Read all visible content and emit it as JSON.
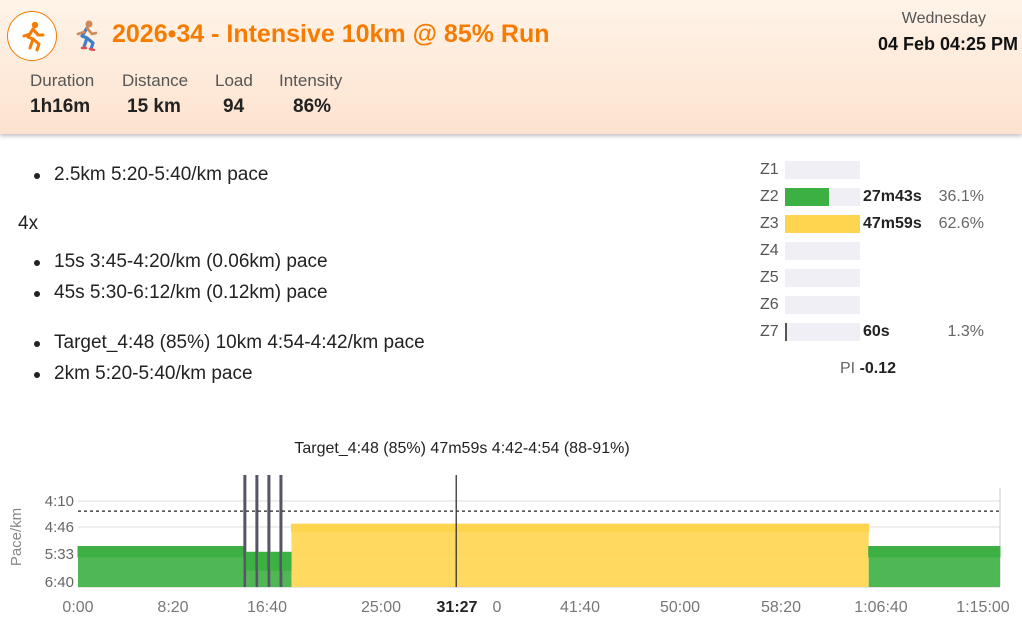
{
  "header": {
    "title": "2026•34 - Intensive 10km @ 85% Run",
    "day": "Wednesday",
    "datetime": "04 Feb 04:25 PM",
    "stats": [
      {
        "label": "Duration",
        "value": "1h16m"
      },
      {
        "label": "Distance",
        "value": "15 km"
      },
      {
        "label": "Load",
        "value": "94"
      },
      {
        "label": "Intensity",
        "value": "86%"
      }
    ]
  },
  "steps": {
    "warmup": "2.5km 5:20-5:40/km pace",
    "repeat_label": "4x",
    "repeat_items": [
      "15s 3:45-4:20/km (0.06km) pace",
      "45s 5:30-6:12/km (0.12km) pace"
    ],
    "main": "Target_4:48 (85%) 10km 4:54-4:42/km pace",
    "cooldown": "2km 5:20-5:40/km pace"
  },
  "zones": [
    {
      "label": "Z1",
      "time": "",
      "percent": "",
      "fraction": 0,
      "color": "#d9d9e6"
    },
    {
      "label": "Z2",
      "time": "27m43s",
      "percent": "36.1%",
      "fraction": 0.59,
      "color": "#3cb043"
    },
    {
      "label": "Z3",
      "time": "47m59s",
      "percent": "62.6%",
      "fraction": 1.0,
      "color": "#ffd54f"
    },
    {
      "label": "Z4",
      "time": "",
      "percent": "",
      "fraction": 0,
      "color": "#d9d9e6"
    },
    {
      "label": "Z5",
      "time": "",
      "percent": "",
      "fraction": 0,
      "color": "#d9d9e6"
    },
    {
      "label": "Z6",
      "time": "",
      "percent": "",
      "fraction": 0,
      "color": "#d9d9e6"
    },
    {
      "label": "Z7",
      "time": "60s",
      "percent": "1.3%",
      "fraction": 0.02,
      "color": "#555555"
    }
  ],
  "pi": {
    "label": "PI",
    "value": "-0.12"
  },
  "chart_data": {
    "type": "area",
    "title": "Target_4:48 (85%) 47m59s 4:42-4:54 (88-91%)",
    "ylabel": "Pace/km",
    "x_ticks": [
      "0:00",
      "8:20",
      "16:40",
      "25:00",
      "31:27",
      "0",
      "41:40",
      "50:00",
      "58:20",
      "1:06:40",
      "1:15:00"
    ],
    "y_ticks": [
      "4:10",
      "4:46",
      "5:33",
      "6:40"
    ],
    "x_range_sec": [
      0,
      4600
    ],
    "threshold_pace": "4:24",
    "cursor": "31:27",
    "segments": [
      {
        "label": "2.5km warmup",
        "start_sec": 0,
        "end_sec": 825,
        "pace_low": "5:20",
        "pace_high": "5:40",
        "zone": "Z2"
      },
      {
        "label": "15s",
        "start_sec": 825,
        "end_sec": 840,
        "pace_low": "3:45",
        "pace_high": "4:20",
        "zone": "Z7"
      },
      {
        "label": "45s",
        "start_sec": 840,
        "end_sec": 885,
        "pace_low": "5:30",
        "pace_high": "6:12",
        "zone": "Z2"
      },
      {
        "label": "15s",
        "start_sec": 885,
        "end_sec": 900,
        "pace_low": "3:45",
        "pace_high": "4:20",
        "zone": "Z7"
      },
      {
        "label": "45s",
        "start_sec": 900,
        "end_sec": 945,
        "pace_low": "5:30",
        "pace_high": "6:12",
        "zone": "Z2"
      },
      {
        "label": "15s",
        "start_sec": 945,
        "end_sec": 960,
        "pace_low": "3:45",
        "pace_high": "4:20",
        "zone": "Z7"
      },
      {
        "label": "45s",
        "start_sec": 960,
        "end_sec": 1005,
        "pace_low": "5:30",
        "pace_high": "6:12",
        "zone": "Z2"
      },
      {
        "label": "15s",
        "start_sec": 1005,
        "end_sec": 1020,
        "pace_low": "3:45",
        "pace_high": "4:20",
        "zone": "Z7"
      },
      {
        "label": "45s",
        "start_sec": 1020,
        "end_sec": 1065,
        "pace_low": "5:30",
        "pace_high": "6:12",
        "zone": "Z2"
      },
      {
        "label": "Target_4:48 (85%)",
        "start_sec": 1065,
        "end_sec": 3945,
        "pace_low": "4:42",
        "pace_high": "4:54",
        "zone": "Z3"
      },
      {
        "label": "2km cooldown",
        "start_sec": 3945,
        "end_sec": 4600,
        "pace_low": "5:20",
        "pace_high": "5:40",
        "zone": "Z2"
      }
    ],
    "colors": {
      "Z2": "#3cb043",
      "Z3": "#ffd54f",
      "Z7": "#555566"
    },
    "grid": true
  }
}
